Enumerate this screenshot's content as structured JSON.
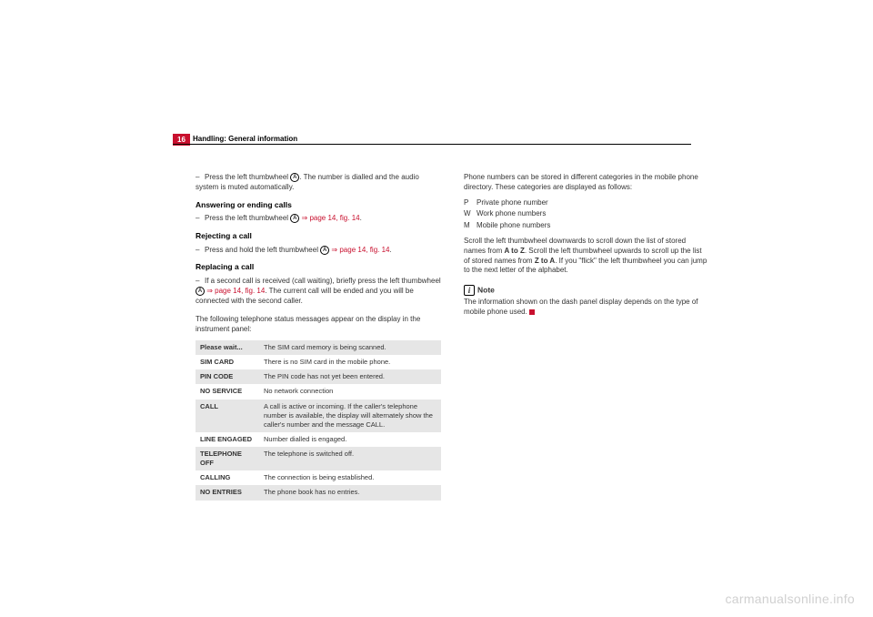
{
  "page_number": "16",
  "header_title": "Handling: General information",
  "left": {
    "instr1_a": "Press the left thumbwheel ",
    "instr1_b": ". The number is dialled and the audio system is muted automatically.",
    "sec1_head": "Answering or ending calls",
    "sec1_a": "Press the left thumbwheel ",
    "sec1_ref": "⇒ page 14, fig. 14",
    "sec2_head": "Rejecting a call",
    "sec2_a": "Press and hold the left thumbwheel ",
    "sec2_ref": "⇒ page 14, fig. 14",
    "sec3_head": "Replacing a call",
    "sec3_a": "If a second call is received (call waiting), briefly press the left thumbwheel ",
    "sec3_ref": "⇒ page 14, fig. 14",
    "sec3_b": ". The current call will be ended and you will be connected with the second caller.",
    "table_intro": "The following telephone status messages appear on the display in the instrument panel:",
    "table": [
      {
        "k": "Please wait...",
        "v": "The SIM card memory is being scanned."
      },
      {
        "k": "SIM CARD",
        "v": "There is no SIM card in the mobile phone."
      },
      {
        "k": "PIN CODE",
        "v": "The PIN code has not yet been entered."
      },
      {
        "k": "NO SERVICE",
        "v": "No network connection"
      },
      {
        "k": "CALL",
        "v": "A call is active or incoming. If the caller's telephone number is available, the display will alternately show the caller's number and the message CALL."
      },
      {
        "k": "LINE ENGAGED",
        "v": "Number dialled is engaged."
      },
      {
        "k": "TELEPHONE OFF",
        "v": "The telephone is switched off."
      },
      {
        "k": "CALLING",
        "v": "The connection is being established."
      },
      {
        "k": "NO ENTRIES",
        "v": "The phone book has no entries."
      }
    ]
  },
  "right": {
    "p1": "Phone numbers can be stored in different categories in the mobile phone directory. These categories are displayed as follows:",
    "cats": [
      {
        "k": "P",
        "v": "Private phone number"
      },
      {
        "k": "W",
        "v": "Work phone numbers"
      },
      {
        "k": "M",
        "v": "Mobile phone numbers"
      }
    ],
    "p2a": "Scroll the left thumbwheel downwards to scroll down the list of stored names from ",
    "p2b": "A to Z",
    "p2c": ". Scroll the left thumbwheel upwards to scroll up the list of stored names from ",
    "p2d": "Z to A",
    "p2e": ". If you \"flick\" the left thumbwheel you can jump to the next letter of the alphabet.",
    "note_label": "Note",
    "note_body": "The information shown on the dash panel display depends on the type of mobile phone used."
  },
  "watermark": "carmanualsonline.info",
  "circled": "A",
  "period": "."
}
